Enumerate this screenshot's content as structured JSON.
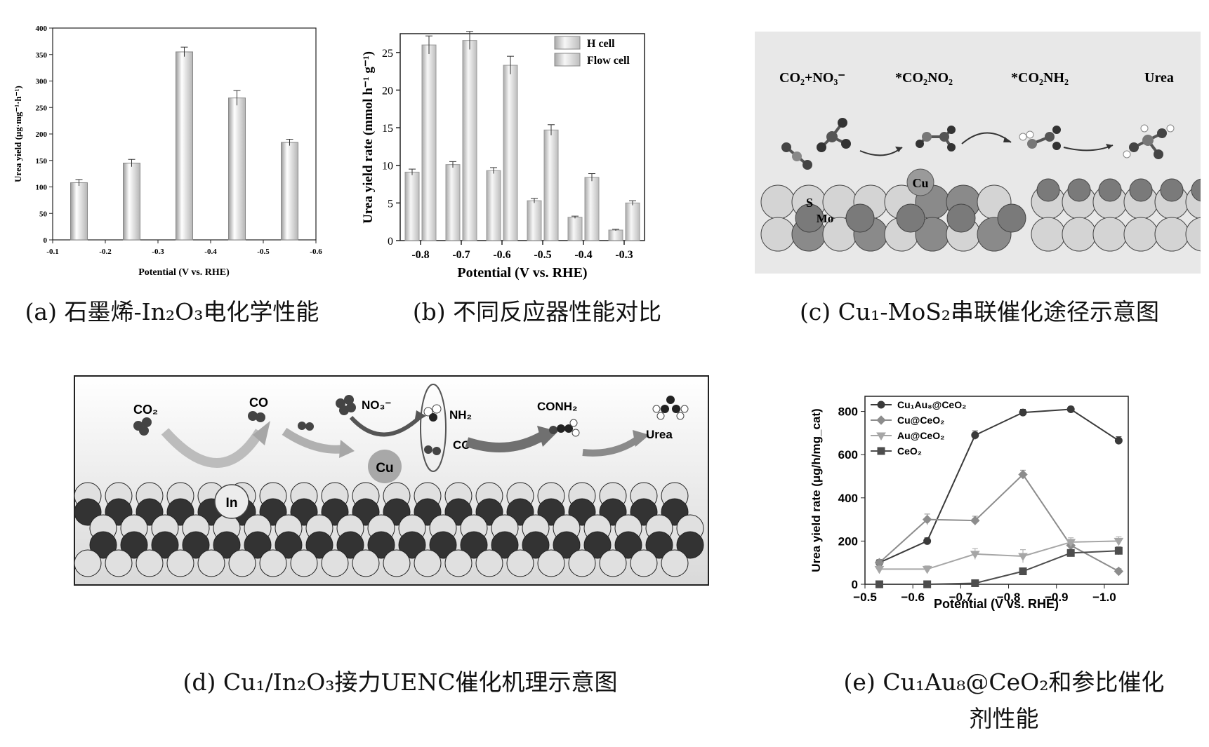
{
  "figure": {
    "panel_a": {
      "caption": "(a) 石墨烯-In₂O₃电化学性能",
      "chart": {
        "type": "bar",
        "xlabel": "Potential (V vs. RHE)",
        "ylabel": "Urea yield (μg·mg⁻¹·h⁻¹)",
        "xticks": [
          "-0.1",
          "-0.2",
          "-0.3",
          "-0.4",
          "-0.5",
          "-0.6"
        ],
        "yticks": [
          "0",
          "50",
          "100",
          "150",
          "200",
          "250",
          "300",
          "350",
          "400"
        ],
        "xlim": [
          -0.1,
          -0.6
        ],
        "ylim": [
          0,
          400
        ]
      }
    },
    "panel_b": {
      "caption": "(b) 不同反应器性能对比",
      "chart": {
        "type": "bar",
        "xlabel": "Potential (V vs. RHE)",
        "ylabel": "Urea yield rate (mmol h⁻¹ g⁻¹)",
        "categories": [
          "-0.8",
          "-0.7",
          "-0.6",
          "-0.5",
          "-0.4",
          "-0.3"
        ],
        "yticks": [
          "0",
          "5",
          "10",
          "15",
          "20",
          "25"
        ],
        "ylim": [
          0,
          27.5
        ],
        "legend": [
          "H cell",
          "Flow cell"
        ]
      }
    },
    "panel_c": {
      "caption": "(c) Cu₁-MoS₂串联催化途径示意图",
      "labels": [
        "CO₂+NO₃⁻",
        "*CO₂NO₂",
        "*CO₂NH₂",
        "Urea"
      ],
      "atoms": {
        "cu": "Cu",
        "s": "S",
        "mo": "Mo"
      }
    },
    "panel_d": {
      "caption": "(d) Cu₁/In₂O₃接力UENC催化机理示意图",
      "labels": {
        "co2": "CO₂",
        "co": "CO",
        "no3": "NO₃⁻",
        "nh2": "NH₂",
        "co2b": "CO",
        "conh2": "CONH₂",
        "urea": "Urea",
        "in": "In",
        "cu": "Cu"
      }
    },
    "panel_e": {
      "caption_line1": "(e) Cu₁Au₈@CeO₂和参比催化",
      "caption_line2": "剂性能",
      "chart": {
        "type": "line",
        "xlabel": "Potential (V vs. RHE)",
        "ylabel": "Urea yield rate (μg/h/mg_cat)",
        "xticks": [
          "−0.5",
          "−0.6",
          "−0.7",
          "−0.8",
          "−0.9",
          "−1.0"
        ],
        "yticks": [
          "0",
          "200",
          "400",
          "600",
          "800"
        ],
        "xlim": [
          -0.5,
          -1.05
        ],
        "ylim": [
          0,
          870
        ]
      }
    }
  },
  "chart_data": [
    {
      "type": "bar",
      "panel": "a",
      "x": [
        -0.15,
        -0.25,
        -0.35,
        -0.45,
        -0.55
      ],
      "values": [
        108,
        145,
        355,
        268,
        184
      ],
      "errors": [
        6,
        7,
        9,
        14,
        6
      ],
      "xlabel": "Potential (V vs. RHE)",
      "ylabel": "Urea yield (μg·mg⁻¹·h⁻¹)",
      "ylim": [
        0,
        400
      ],
      "xlim": [
        -0.1,
        -0.6
      ]
    },
    {
      "type": "bar",
      "panel": "b",
      "categories": [
        "-0.8",
        "-0.7",
        "-0.6",
        "-0.5",
        "-0.4",
        "-0.3"
      ],
      "series": [
        {
          "name": "H cell",
          "values": [
            9.1,
            10.1,
            9.3,
            5.3,
            3.1,
            1.4
          ],
          "errors": [
            0.4,
            0.4,
            0.4,
            0.3,
            0.15,
            0.1
          ]
        },
        {
          "name": "Flow cell",
          "values": [
            26.0,
            26.6,
            23.3,
            14.7,
            8.4,
            5.0
          ],
          "errors": [
            1.2,
            1.2,
            1.2,
            0.7,
            0.5,
            0.3
          ]
        }
      ],
      "xlabel": "Potential (V vs. RHE)",
      "ylabel": "Urea yield rate (mmol h⁻¹ g⁻¹)",
      "ylim": [
        0,
        27.5
      ],
      "legend_position": "top-right"
    },
    {
      "type": "line",
      "panel": "e",
      "x": [
        -0.53,
        -0.63,
        -0.73,
        -0.83,
        -0.93,
        -1.03
      ],
      "series": [
        {
          "name": "Cu₁Au₈@CeO₂",
          "values": [
            100,
            200,
            690,
            795,
            810,
            665
          ],
          "errors": [
            15,
            15,
            20,
            15,
            12,
            18
          ],
          "marker": "circle",
          "color": "#3a3a3a"
        },
        {
          "name": "Cu@CeO₂",
          "values": [
            100,
            300,
            295,
            508,
            180,
            60
          ],
          "errors": [
            15,
            25,
            20,
            20,
            20,
            12
          ],
          "marker": "diamond",
          "color": "#8c8c8c"
        },
        {
          "name": "Au@CeO₂",
          "values": [
            70,
            70,
            140,
            130,
            195,
            200
          ],
          "errors": [
            15,
            15,
            25,
            30,
            20,
            20
          ],
          "marker": "triangle-down",
          "color": "#a6a6a6"
        },
        {
          "name": "CeO₂",
          "values": [
            0,
            0,
            5,
            60,
            145,
            155
          ],
          "errors": [
            3,
            3,
            5,
            8,
            15,
            18
          ],
          "marker": "square",
          "color": "#4d4d4d"
        }
      ],
      "xlabel": "Potential (V vs. RHE)",
      "ylabel": "Urea yield rate (μg/h/mg_cat)",
      "ylim": [
        0,
        870
      ],
      "legend_position": "top-left"
    }
  ]
}
